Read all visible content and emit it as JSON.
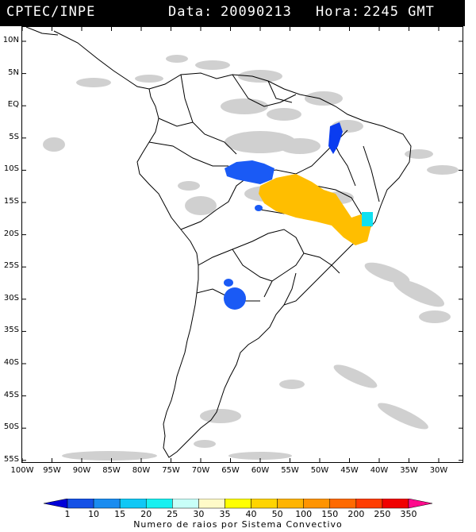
{
  "header": {
    "source": "CPTEC/INPE",
    "date_label": "Data:",
    "date": "20090213",
    "hour_label": "Hora:",
    "hour": "2245 GMT"
  },
  "lat_axis": [
    "10N",
    "5N",
    "EQ",
    "5S",
    "10S",
    "15S",
    "20S",
    "25S",
    "30S",
    "35S",
    "40S",
    "45S",
    "50S",
    "55S"
  ],
  "lon_axis": [
    "100W",
    "95W",
    "90W",
    "85W",
    "80W",
    "75W",
    "70W",
    "65W",
    "60W",
    "55W",
    "50W",
    "45W",
    "40W",
    "35W",
    "30W"
  ],
  "colorbar": {
    "ticks": [
      "1",
      "10",
      "15",
      "20",
      "25",
      "30",
      "35",
      "40",
      "50",
      "100",
      "150",
      "200",
      "250",
      "350"
    ],
    "colors": [
      "#0000d8",
      "#1450e6",
      "#1a8cf0",
      "#10c8f5",
      "#18f0f0",
      "#c8fff8",
      "#fffac8",
      "#ffff00",
      "#ffd400",
      "#ffb400",
      "#ff9400",
      "#ff6a00",
      "#ff3c00",
      "#f00000",
      "#ff0a8c"
    ],
    "label": "Numero de raios por Sistema Convectivo"
  },
  "colors": {
    "cloud_gray": "#c0c0c0",
    "blue_strong": "#0a3cf0",
    "blue_light": "#1a5af5",
    "cyan": "#10e0f0",
    "orange": "#ffbe00",
    "coastline": "#000000"
  }
}
